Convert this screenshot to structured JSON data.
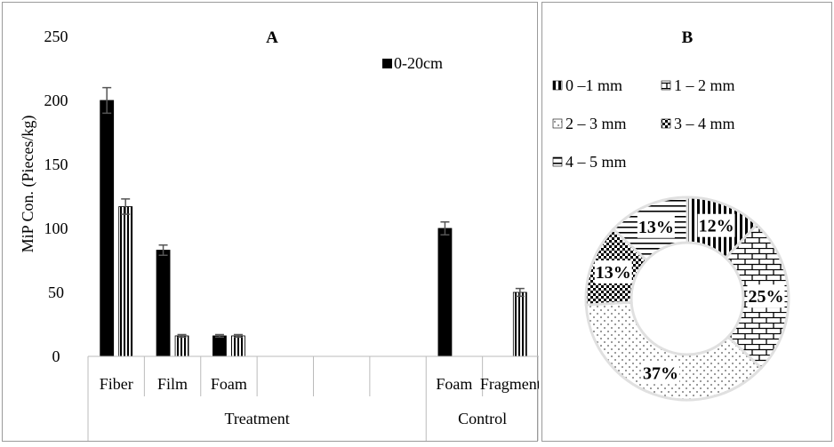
{
  "chart_data": [
    {
      "type": "bar",
      "title": "A",
      "ylabel": "MiP Con. (Pieces/kg)",
      "xlabel": "",
      "ylim": [
        0,
        250
      ],
      "yticks": [
        0,
        50,
        100,
        150,
        200,
        250
      ],
      "grid": false,
      "legend_position": "top-right",
      "categories": [
        "Fiber",
        "Film",
        "Foam",
        "",
        "",
        "",
        "Foam",
        "Fragment"
      ],
      "groups": [
        {
          "label": "Treatment",
          "span": 6
        },
        {
          "label": "Control",
          "span": 2
        }
      ],
      "series": [
        {
          "name": "0-20cm",
          "pattern": "solid",
          "color": "#000000",
          "values": [
            200,
            83,
            16,
            null,
            null,
            null,
            100,
            null
          ],
          "errors": [
            10,
            4,
            1,
            null,
            null,
            null,
            5,
            null
          ]
        },
        {
          "name": "",
          "pattern": "vertical-stripes",
          "color": "#000000",
          "values": [
            117,
            16,
            16,
            null,
            null,
            null,
            null,
            50
          ],
          "errors": [
            6,
            1,
            1,
            null,
            null,
            null,
            null,
            3
          ]
        }
      ]
    },
    {
      "type": "pie",
      "donut": true,
      "title": "B",
      "legend_position": "top",
      "slices": [
        {
          "label": "0 –1 mm",
          "value": 12,
          "value_label": "12%",
          "pattern": "vstripes"
        },
        {
          "label": "1 – 2 mm",
          "value": 25,
          "value_label": "25%",
          "pattern": "bricks"
        },
        {
          "label": "2 – 3 mm",
          "value": 37,
          "value_label": "37%",
          "pattern": "dots"
        },
        {
          "label": "3 – 4 mm",
          "value": 13,
          "value_label": "13%",
          "pattern": "checker"
        },
        {
          "label": "4 – 5 mm",
          "value": 13,
          "value_label": "13%",
          "pattern": "hstripes"
        }
      ]
    }
  ]
}
